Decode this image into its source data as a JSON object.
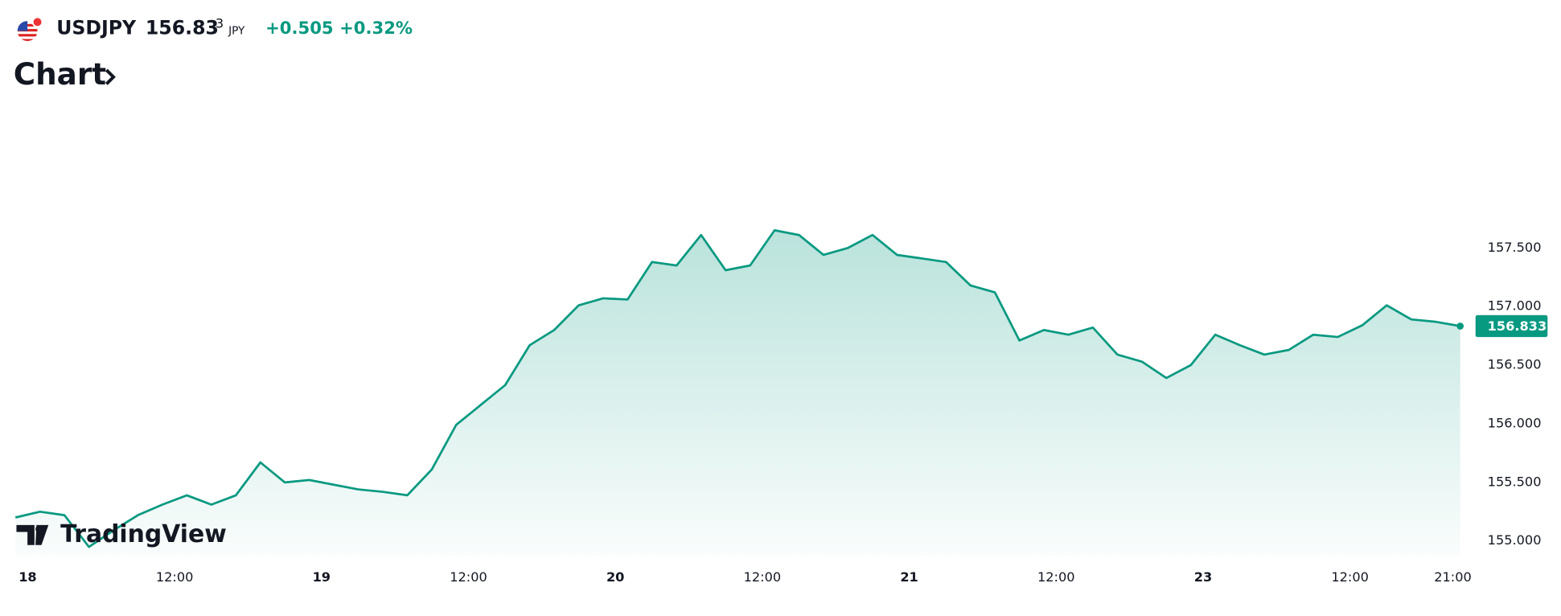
{
  "header": {
    "symbol": "USDJPY",
    "price": "156.83",
    "price_last_digit": "3",
    "currency": "JPY",
    "change": "+0.505",
    "change_pct": "+0.32%",
    "section": "Chart"
  },
  "watermark": "TradingView",
  "chart_data": {
    "type": "line",
    "series": [
      {
        "name": "USDJPY",
        "color": "#089981",
        "values": [
          155.2,
          155.25,
          155.22,
          154.95,
          155.09,
          155.22,
          155.31,
          155.39,
          155.31,
          155.39,
          155.67,
          155.5,
          155.52,
          155.48,
          155.44,
          155.42,
          155.39,
          155.61,
          155.99,
          156.16,
          156.33,
          156.67,
          156.8,
          157.01,
          157.07,
          157.06,
          157.38,
          157.35,
          157.61,
          157.31,
          157.35,
          157.65,
          157.61,
          157.44,
          157.5,
          157.61,
          157.44,
          157.41,
          157.38,
          157.18,
          157.12,
          156.71,
          156.8,
          156.76,
          156.82,
          156.59,
          156.53,
          156.39,
          156.5,
          156.76,
          156.67,
          156.59,
          156.63,
          156.76,
          156.74,
          156.84,
          157.01,
          156.89,
          156.87,
          156.833
        ]
      }
    ],
    "xlim": [
      0,
      59.3
    ],
    "xticks": [
      {
        "value": 0.5,
        "label": "18"
      },
      {
        "value": 6.5,
        "label": "12:00"
      },
      {
        "value": 12.5,
        "label": "19"
      },
      {
        "value": 18.5,
        "label": "12:00"
      },
      {
        "value": 24.5,
        "label": "20"
      },
      {
        "value": 30.5,
        "label": "12:00"
      },
      {
        "value": 36.5,
        "label": "21"
      },
      {
        "value": 42.5,
        "label": "12:00"
      },
      {
        "value": 48.5,
        "label": "23"
      },
      {
        "value": 54.5,
        "label": "12:00"
      },
      {
        "value": 58.7,
        "label": "21:00"
      }
    ],
    "ylim": [
      154.872,
      157.9
    ],
    "yticks": [
      {
        "value": 155,
        "label": "155.000"
      },
      {
        "value": 155.5,
        "label": "155.500"
      },
      {
        "value": 156,
        "label": "156.000"
      },
      {
        "value": 156.5,
        "label": "156.500"
      },
      {
        "value": 157,
        "label": "157.000"
      },
      {
        "value": 157.5,
        "label": "157.500"
      }
    ]
  }
}
